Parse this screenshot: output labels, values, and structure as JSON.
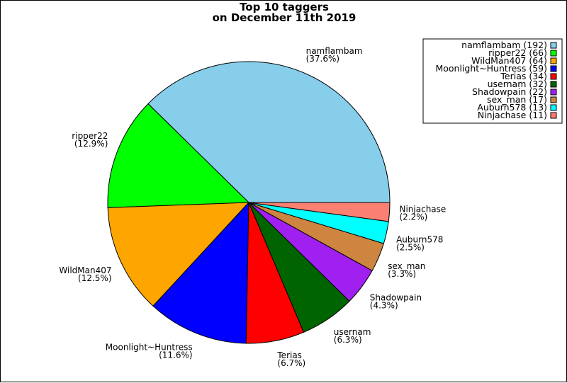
{
  "chart_data": {
    "type": "pie",
    "title": "Top 10 taggers",
    "subtitle": "on December 11th 2019",
    "legend_position": "top-right",
    "slices": [
      {
        "label": "namflambam",
        "value": 192,
        "percent": "(37.6%)",
        "legend": "namflambam (192)",
        "color": "#87ceeb"
      },
      {
        "label": "ripper22",
        "value": 66,
        "percent": "(12.9%)",
        "legend": "ripper22 (66)",
        "color": "#00ff00"
      },
      {
        "label": "WildMan407",
        "value": 64,
        "percent": "(12.5%)",
        "legend": "WildMan407 (64)",
        "color": "#ffa500"
      },
      {
        "label": "Moonlight~Huntress",
        "value": 59,
        "percent": "(11.6%)",
        "legend": "Moonlight~Huntress (59)",
        "color": "#0000ff"
      },
      {
        "label": "Terias",
        "value": 34,
        "percent": "(6.7%)",
        "legend": "Terias (34)",
        "color": "#ff0000"
      },
      {
        "label": "usernam",
        "value": 32,
        "percent": "(6.3%)",
        "legend": "usernam (32)",
        "color": "#006400"
      },
      {
        "label": "Shadowpain",
        "value": 22,
        "percent": "(4.3%)",
        "legend": "Shadowpain (22)",
        "color": "#a020f0"
      },
      {
        "label": "sex_man",
        "value": 17,
        "percent": "(3.3%)",
        "legend": "sex_man (17)",
        "color": "#cd853f"
      },
      {
        "label": "Auburn578",
        "value": 13,
        "percent": "(2.5%)",
        "legend": "Auburn578 (13)",
        "color": "#00ffff"
      },
      {
        "label": "Ninjachase",
        "value": 11,
        "percent": "(2.2%)",
        "legend": "Ninjachase (11)",
        "color": "#fa8072"
      }
    ]
  }
}
